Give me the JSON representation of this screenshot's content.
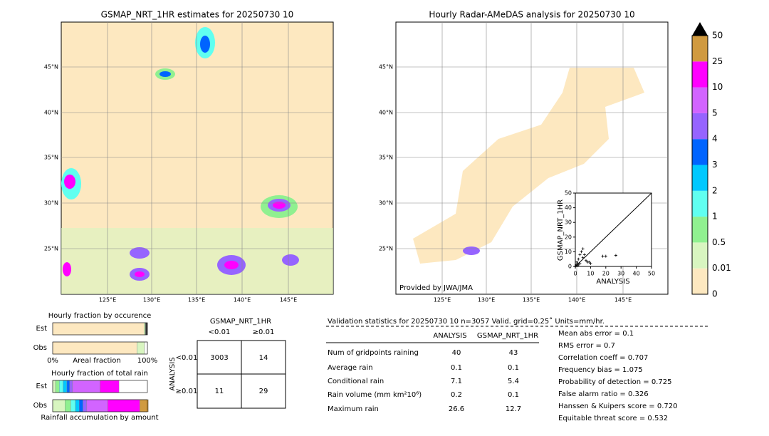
{
  "left_map": {
    "title": "GSMAP_NRT_1HR estimates for 20250730 10",
    "lat_labels": [
      "45°N",
      "40°N",
      "35°N",
      "30°N",
      "25°N"
    ],
    "lon_labels": [
      "125°E",
      "130°E",
      "135°E",
      "140°E",
      "145°E"
    ]
  },
  "right_map": {
    "title": "Hourly Radar-AMeDAS analysis for 20250730 10",
    "lat_labels": [
      "45°N",
      "40°N",
      "35°N",
      "30°N",
      "25°N"
    ],
    "lon_labels": [
      "125°E",
      "130°E",
      "135°E",
      "140°E",
      "145°E"
    ],
    "credit": "Provided by JWA/JMA"
  },
  "scatter": {
    "type": "scatter",
    "xlabel": "ANALYSIS",
    "ylabel": "GSMAP_NRT_1HR",
    "xlim": [
      0,
      50
    ],
    "ylim": [
      0,
      50
    ],
    "xticks": [
      0,
      10,
      20,
      30,
      40,
      50
    ],
    "yticks": [
      0,
      10,
      20,
      30,
      40,
      50
    ],
    "x": [
      0.2,
      0.5,
      1,
      1,
      1.5,
      2,
      2,
      3,
      3,
      4,
      5,
      5,
      6,
      7,
      8,
      9,
      10,
      18,
      20,
      26.6
    ],
    "values": [
      0.3,
      1,
      0.5,
      3,
      2,
      5,
      1,
      8,
      2,
      10,
      12,
      6,
      8,
      4,
      3,
      3,
      2,
      7,
      7,
      7.5
    ]
  },
  "colorbar": {
    "labels": [
      "0",
      "0.01",
      "0.5",
      "1",
      "2",
      "3",
      "4",
      "5",
      "10",
      "25",
      "50"
    ],
    "colors": [
      "#fde8c0",
      "#d8f5c0",
      "#90f090",
      "#60fff0",
      "#00c8ff",
      "#0064ff",
      "#9664ff",
      "#d264ff",
      "#ff00ff",
      "#d09a40"
    ]
  },
  "occurrence": {
    "title": "Hourly fraction by occurence",
    "rows": [
      "Est",
      "Obs"
    ],
    "axis_left": "0%",
    "axis_mid": "Areal fraction",
    "axis_right": "100%",
    "segments": [
      [
        {
          "color": "#fde8c0",
          "value": 97
        },
        {
          "color": "#90f090",
          "value": 1
        },
        {
          "color": "#333333",
          "value": 2
        }
      ],
      [
        {
          "color": "#fde8c0",
          "value": 89
        },
        {
          "color": "#d8f5c0",
          "value": 8
        },
        {
          "color": "#ffffff",
          "value": 3
        }
      ]
    ]
  },
  "total_rain": {
    "title": "Hourly fraction of total rain",
    "rows": [
      "Est",
      "Obs"
    ],
    "footer": "Rainfall accumulation by amount",
    "segments": [
      [
        {
          "color": "#d8f5c0",
          "value": 3
        },
        {
          "color": "#90f090",
          "value": 4
        },
        {
          "color": "#60fff0",
          "value": 4
        },
        {
          "color": "#00c8ff",
          "value": 4
        },
        {
          "color": "#0064ff",
          "value": 3
        },
        {
          "color": "#9664ff",
          "value": 3
        },
        {
          "color": "#d264ff",
          "value": 29
        },
        {
          "color": "#ff00ff",
          "value": 20
        }
      ],
      [
        {
          "color": "#d8f5c0",
          "value": 13
        },
        {
          "color": "#90f090",
          "value": 6
        },
        {
          "color": "#60fff0",
          "value": 5
        },
        {
          "color": "#00c8ff",
          "value": 4
        },
        {
          "color": "#0064ff",
          "value": 4
        },
        {
          "color": "#9664ff",
          "value": 4
        },
        {
          "color": "#d264ff",
          "value": 22
        },
        {
          "color": "#ff00ff",
          "value": 34
        },
        {
          "color": "#d09a40",
          "value": 9
        }
      ]
    ]
  },
  "contingency": {
    "title": "GSMAP_NRT_1HR",
    "cols": [
      "<0.01",
      "≥0.01"
    ],
    "ylabel": "ANALYSIS",
    "rows": [
      "<0.01",
      "≥0.01"
    ],
    "cells": [
      [
        3003,
        14
      ],
      [
        11,
        29
      ]
    ]
  },
  "validation": {
    "header": "Validation statistics for 20250730 10  n=3057 Valid. grid=0.25˚ Units=mm/hr.",
    "columns": [
      "ANALYSIS",
      "GSMAP_NRT_1HR"
    ],
    "rows": [
      {
        "label": "Num of gridpoints raining",
        "values": [
          "40",
          "43"
        ]
      },
      {
        "label": "Average rain",
        "values": [
          "0.1",
          "0.1"
        ]
      },
      {
        "label": "Conditional rain",
        "values": [
          "7.1",
          "5.4"
        ]
      },
      {
        "label": "Rain volume (mm km²10⁶)",
        "values": [
          "0.2",
          "0.1"
        ]
      },
      {
        "label": "Maximum rain",
        "values": [
          "26.6",
          "12.7"
        ]
      }
    ],
    "scores": [
      "Mean abs error =    0.1",
      "RMS error =    0.7",
      "Correlation coeff =  0.707",
      "Frequency bias =  1.075",
      "Probability of detection =  0.725",
      "False alarm ratio =  0.326",
      "Hanssen & Kuipers score =  0.720",
      "Equitable threat score =  0.532"
    ]
  }
}
